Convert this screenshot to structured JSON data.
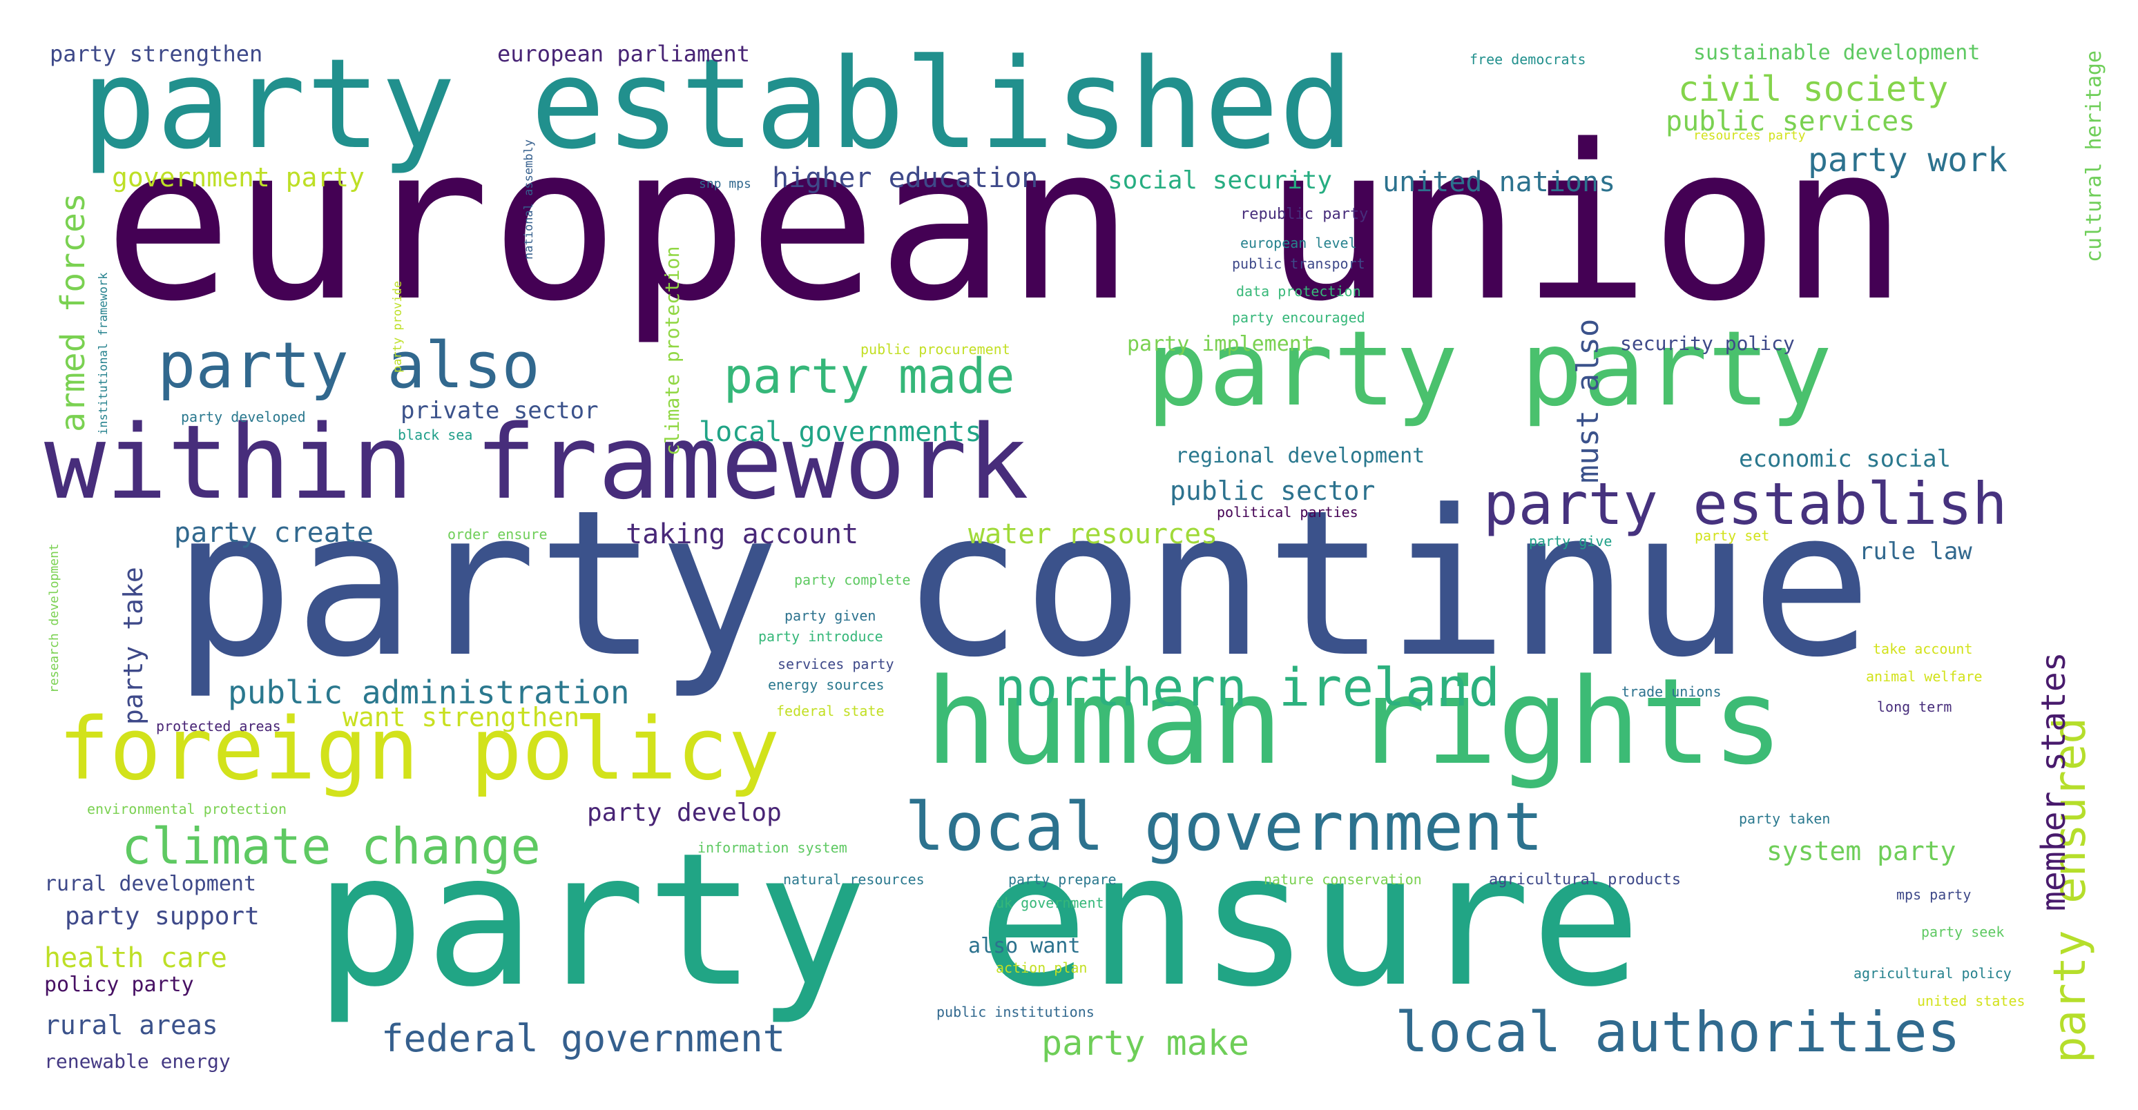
{
  "words": [
    {
      "text": "european union",
      "color": "#440154"
    },
    {
      "text": "party continue",
      "color": "#3b528b"
    },
    {
      "text": "party ensure",
      "color": "#21a585"
    },
    {
      "text": "party established",
      "color": "#21908d"
    },
    {
      "text": "human rights",
      "color": "#3cbb75"
    },
    {
      "text": "party party",
      "color": "#4ac16d"
    },
    {
      "text": "within framework",
      "color": "#472d7b"
    },
    {
      "text": "foreign policy",
      "color": "#d2e21b"
    },
    {
      "text": "local government",
      "color": "#2c728e"
    },
    {
      "text": "party also",
      "color": "#31688e"
    },
    {
      "text": "local authorities",
      "color": "#306a8e"
    },
    {
      "text": "northern ireland",
      "color": "#2cb17e"
    },
    {
      "text": "party establish",
      "color": "#46327e"
    },
    {
      "text": "climate change",
      "color": "#5ec962"
    },
    {
      "text": "party made",
      "color": "#35b779"
    },
    {
      "text": "party ensured",
      "color": "#b5de2b"
    },
    {
      "text": "member states",
      "color": "#481a6c"
    },
    {
      "text": "federal government",
      "color": "#355f8d"
    },
    {
      "text": "civil society",
      "color": "#84d44b"
    },
    {
      "text": "public administration",
      "color": "#2a788e"
    },
    {
      "text": "armed forces",
      "color": "#7ad151"
    },
    {
      "text": "party work",
      "color": "#2c728e"
    },
    {
      "text": "party make",
      "color": "#6ece58"
    },
    {
      "text": "must also",
      "color": "#3b528b"
    },
    {
      "text": "local governments",
      "color": "#20a486"
    },
    {
      "text": "public services",
      "color": "#7ad151"
    },
    {
      "text": "higher education",
      "color": "#3e4989"
    },
    {
      "text": "united nations",
      "color": "#2c728e"
    },
    {
      "text": "taking account",
      "color": "#482878"
    },
    {
      "text": "water resources",
      "color": "#a0da39"
    },
    {
      "text": "party create",
      "color": "#31688e"
    },
    {
      "text": "want strengthen",
      "color": "#c8e020"
    },
    {
      "text": "government party",
      "color": "#bddf26"
    },
    {
      "text": "social security",
      "color": "#26ad81"
    },
    {
      "text": "party develop",
      "color": "#482475"
    },
    {
      "text": "system party",
      "color": "#6ece58"
    },
    {
      "text": "public sector",
      "color": "#2c728e"
    },
    {
      "text": "private sector",
      "color": "#3b528b"
    },
    {
      "text": "party take",
      "color": "#3e4989"
    },
    {
      "text": "health care",
      "color": "#bddf26"
    },
    {
      "text": "rural areas",
      "color": "#3b528b"
    },
    {
      "text": "party support",
      "color": "#3e4989"
    },
    {
      "text": "rule law",
      "color": "#31688e"
    },
    {
      "text": "economic social",
      "color": "#2a788e"
    },
    {
      "text": "sustainable development",
      "color": "#5ec962"
    },
    {
      "text": "european parliament",
      "color": "#482475"
    },
    {
      "text": "party strengthen",
      "color": "#3e4989"
    },
    {
      "text": "cultural heritage",
      "color": "#6ece58"
    },
    {
      "text": "climate protection",
      "color": "#90d743"
    },
    {
      "text": "regional development",
      "color": "#2a788e"
    },
    {
      "text": "also want",
      "color": "#2c728e"
    },
    {
      "text": "rural development",
      "color": "#3e4989"
    },
    {
      "text": "policy party",
      "color": "#471063"
    },
    {
      "text": "renewable energy",
      "color": "#443983"
    },
    {
      "text": "security policy",
      "color": "#3e4989"
    },
    {
      "text": "party implement",
      "color": "#7ad151"
    },
    {
      "text": "free democrats",
      "color": "#21908d"
    },
    {
      "text": "resources party",
      "color": "#d2e21b"
    },
    {
      "text": "snp mps",
      "color": "#31688e"
    },
    {
      "text": "national assembly",
      "color": "#355f8d"
    },
    {
      "text": "institutional framework",
      "color": "#26828e"
    },
    {
      "text": "republic party",
      "color": "#472d7b"
    },
    {
      "text": "european level",
      "color": "#26828e"
    },
    {
      "text": "public transport",
      "color": "#3e4989"
    },
    {
      "text": "data protection",
      "color": "#37b878"
    },
    {
      "text": "party encouraged",
      "color": "#35b779"
    },
    {
      "text": "public procurement",
      "color": "#c2df23"
    },
    {
      "text": "party provide",
      "color": "#bddf26"
    },
    {
      "text": "party developed",
      "color": "#2a788e"
    },
    {
      "text": "black sea",
      "color": "#1f9e89"
    },
    {
      "text": "order ensure",
      "color": "#6ece58"
    },
    {
      "text": "political parties",
      "color": "#440154"
    },
    {
      "text": "party give",
      "color": "#1fa088"
    },
    {
      "text": "party set",
      "color": "#d2e21b"
    },
    {
      "text": "party complete",
      "color": "#5ec962"
    },
    {
      "text": "party given",
      "color": "#2c728e"
    },
    {
      "text": "party introduce",
      "color": "#35b779"
    },
    {
      "text": "services party",
      "color": "#3e4989"
    },
    {
      "text": "energy sources",
      "color": "#2a788e"
    },
    {
      "text": "federal state",
      "color": "#c2df23"
    },
    {
      "text": "research development",
      "color": "#7ad151"
    },
    {
      "text": "protected areas",
      "color": "#482475"
    },
    {
      "text": "environmental protection",
      "color": "#7ad151"
    },
    {
      "text": "information system",
      "color": "#5ec962"
    },
    {
      "text": "natural resources",
      "color": "#2a788e"
    },
    {
      "text": "party prepare",
      "color": "#2a788e"
    },
    {
      "text": "uk government",
      "color": "#35b779"
    },
    {
      "text": "action plan",
      "color": "#c2df23"
    },
    {
      "text": "public institutions",
      "color": "#31688e"
    },
    {
      "text": "nature conservation",
      "color": "#7ad151"
    },
    {
      "text": "agricultural products",
      "color": "#3e4989"
    },
    {
      "text": "take account",
      "color": "#d2e21b"
    },
    {
      "text": "animal welfare",
      "color": "#d2e21b"
    },
    {
      "text": "trade unions",
      "color": "#2c728e"
    },
    {
      "text": "long term",
      "color": "#472d7b"
    },
    {
      "text": "party taken",
      "color": "#2a788e"
    },
    {
      "text": "mps party",
      "color": "#3e4989"
    },
    {
      "text": "party seek",
      "color": "#5ec962"
    },
    {
      "text": "agricultural policy",
      "color": "#26828e"
    },
    {
      "text": "united states",
      "color": "#d2e21b"
    }
  ]
}
